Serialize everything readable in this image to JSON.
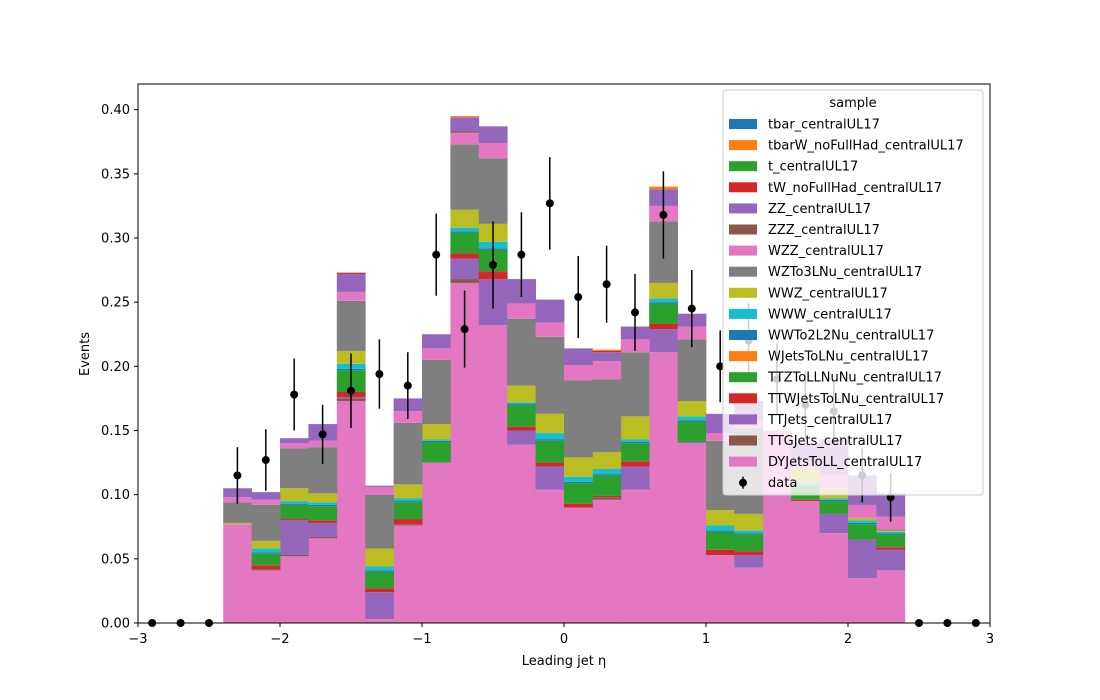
{
  "chart_data": {
    "type": "bar",
    "stacked": true,
    "xlabel": "Leading jet  η",
    "ylabel": "Events",
    "xlim": [
      -3,
      3
    ],
    "ylim": [
      0,
      0.42
    ],
    "xticks": [
      "−3",
      "−2",
      "−1",
      "0",
      "1",
      "2",
      "3"
    ],
    "xtick_values": [
      -3,
      -2,
      -1,
      0,
      1,
      2,
      3
    ],
    "yticks": [
      "0.00",
      "0.05",
      "0.10",
      "0.15",
      "0.20",
      "0.25",
      "0.30",
      "0.35",
      "0.40"
    ],
    "ytick_values": [
      0,
      0.05,
      0.1,
      0.15,
      0.2,
      0.25,
      0.3,
      0.35,
      0.4
    ],
    "legend": {
      "title": "sample",
      "position": "upper right"
    },
    "bin_edges": [
      -3.0,
      -2.8,
      -2.6,
      -2.4,
      -2.2,
      -2.0,
      -1.8,
      -1.6,
      -1.4,
      -1.2,
      -1.0,
      -0.8,
      -0.6,
      -0.4,
      -0.2,
      0.0,
      0.2,
      0.4,
      0.6,
      0.8,
      1.0,
      1.2,
      1.4,
      1.6,
      1.8,
      2.0,
      2.2,
      2.4,
      2.6,
      2.8,
      3.0
    ],
    "series": [
      {
        "name": "DYJetsToLL_centralUL17",
        "color": "#e377c2",
        "values": [
          0,
          0,
          0,
          0.077,
          0.041,
          0.052,
          0.066,
          0.173,
          0.003,
          0.076,
          0.125,
          0.265,
          0.232,
          0.139,
          0.104,
          0.09,
          0.096,
          0.104,
          0.211,
          0.14,
          0.053,
          0.043,
          0.15,
          0.095,
          0.07,
          0.035,
          0.041,
          0,
          0,
          0
        ]
      },
      {
        "name": "TTGJets_centralUL17",
        "color": "#8c564b",
        "values": [
          0,
          0,
          0,
          0,
          0.001,
          0.001,
          0.001,
          0.002,
          0,
          0.001,
          0,
          0.003,
          0,
          0,
          0,
          0,
          0.002,
          0,
          0,
          0,
          0,
          0,
          0,
          0,
          0,
          0,
          0,
          0,
          0,
          0
        ]
      },
      {
        "name": "TTJets_centralUL17",
        "color": "#9467bd",
        "values": [
          0,
          0,
          0,
          0,
          0,
          0.027,
          0.011,
          0.001,
          0.021,
          0,
          0,
          0.016,
          0.036,
          0.011,
          0.018,
          0,
          0,
          0.018,
          0.018,
          0.001,
          0,
          0.01,
          0,
          0,
          0.015,
          0.03,
          0.016,
          0,
          0,
          0
        ]
      },
      {
        "name": "TTWJetsToLNu_centralUL17",
        "color": "#d62728",
        "values": [
          0,
          0,
          0,
          0,
          0.003,
          0.001,
          0.002,
          0.004,
          0.003,
          0.004,
          0,
          0.004,
          0.006,
          0.003,
          0.003,
          0.003,
          0.001,
          0.004,
          0.004,
          0,
          0.004,
          0.003,
          0,
          0.001,
          0,
          0,
          0.002,
          0,
          0,
          0
        ]
      },
      {
        "name": "TTZToLLNuNu_centralUL17",
        "color": "#2ca02c",
        "values": [
          0,
          0,
          0,
          0,
          0.009,
          0.011,
          0.011,
          0.017,
          0.013,
          0.013,
          0.016,
          0.016,
          0.017,
          0.017,
          0.017,
          0.016,
          0.016,
          0.014,
          0.016,
          0.016,
          0.014,
          0.013,
          0,
          0.01,
          0.01,
          0.012,
          0.01,
          0,
          0,
          0
        ]
      },
      {
        "name": "WJetsToLNu_centralUL17",
        "color": "#ff7f0e",
        "values": [
          0,
          0,
          0,
          0,
          0,
          0,
          0,
          0,
          0,
          0,
          0,
          0,
          0,
          0,
          0,
          0,
          0,
          0,
          0,
          0,
          0,
          0,
          0,
          0,
          0,
          0,
          0,
          0,
          0,
          0
        ]
      },
      {
        "name": "WWTo2L2Nu_centralUL17",
        "color": "#1f77b4",
        "values": [
          0,
          0,
          0,
          0,
          0.001,
          0.001,
          0.001,
          0.001,
          0.001,
          0.001,
          0.001,
          0.001,
          0.001,
          0.001,
          0.001,
          0.001,
          0.001,
          0.001,
          0.001,
          0.001,
          0.001,
          0.001,
          0,
          0.001,
          0.001,
          0.001,
          0.001,
          0,
          0,
          0
        ]
      },
      {
        "name": "WWW_centralUL17",
        "color": "#17becf",
        "values": [
          0,
          0,
          0,
          0,
          0.003,
          0.002,
          0.002,
          0.004,
          0.003,
          0.002,
          0.001,
          0.003,
          0.005,
          0.001,
          0.005,
          0.004,
          0.004,
          0.002,
          0.003,
          0.003,
          0.004,
          0.002,
          0,
          0.002,
          0.001,
          0.002,
          0.001,
          0,
          0,
          0
        ]
      },
      {
        "name": "WWZ_centralUL17",
        "color": "#bcbd22",
        "values": [
          0,
          0,
          0,
          0.001,
          0.006,
          0.01,
          0.007,
          0.01,
          0.014,
          0.011,
          0.012,
          0.014,
          0.014,
          0.013,
          0.015,
          0.015,
          0.013,
          0.018,
          0.012,
          0.012,
          0.012,
          0.013,
          0,
          0.011,
          0.008,
          0.002,
          0.001,
          0,
          0,
          0
        ]
      },
      {
        "name": "WZTo3LNu_centralUL17",
        "color": "#7f7f7f",
        "values": [
          0,
          0,
          0,
          0.016,
          0.028,
          0.031,
          0.036,
          0.039,
          0.042,
          0.048,
          0.05,
          0.051,
          0.051,
          0.052,
          0.06,
          0.06,
          0.057,
          0.05,
          0.048,
          0.048,
          0.054,
          0.067,
          0,
          0,
          0,
          0,
          0.001,
          0,
          0,
          0
        ]
      },
      {
        "name": "WZZ_centralUL17",
        "color": "#e377c2",
        "values": [
          0,
          0,
          0,
          0.004,
          0.004,
          0.004,
          0.005,
          0.007,
          0.006,
          0.009,
          0.009,
          0.009,
          0.012,
          0.012,
          0.011,
          0.012,
          0.014,
          0.01,
          0.012,
          0.01,
          0.006,
          0.006,
          0,
          0.005,
          0.01,
          0.01,
          0.01,
          0,
          0,
          0
        ]
      },
      {
        "name": "ZZZ_centralUL17",
        "color": "#8c564b",
        "values": [
          0,
          0,
          0,
          0,
          0,
          0,
          0,
          0,
          0,
          0,
          0,
          0.001,
          0,
          0,
          0,
          0,
          0,
          0,
          0,
          0,
          0,
          0,
          0,
          0,
          0,
          0,
          0,
          0,
          0,
          0
        ]
      },
      {
        "name": "ZZ_centralUL17",
        "color": "#9467bd",
        "values": [
          0,
          0,
          0,
          0.007,
          0.006,
          0.004,
          0.013,
          0.014,
          0.001,
          0.01,
          0.011,
          0.011,
          0.013,
          0.019,
          0.018,
          0.013,
          0.007,
          0.01,
          0.013,
          0.01,
          0.015,
          0.015,
          0,
          0.015,
          0.028,
          0.023,
          0.018,
          0,
          0,
          0
        ]
      },
      {
        "name": "tW_noFullHad_centralUL17",
        "color": "#d62728",
        "values": [
          0,
          0,
          0,
          0,
          0,
          0,
          0,
          0.001,
          0,
          0,
          0,
          0,
          0,
          0,
          0,
          0,
          0.001,
          0,
          0,
          0,
          0,
          0,
          0,
          0,
          0,
          0,
          0,
          0,
          0,
          0
        ]
      },
      {
        "name": "t_centralUL17",
        "color": "#2ca02c",
        "values": [
          0,
          0,
          0,
          0,
          0,
          0,
          0,
          0,
          0,
          0,
          0,
          0,
          0,
          0,
          0,
          0,
          0,
          0,
          0,
          0,
          0,
          0,
          0,
          0,
          0,
          0,
          0,
          0,
          0,
          0
        ]
      },
      {
        "name": "tbarW_noFullHad_centralUL17",
        "color": "#ff7f0e",
        "values": [
          0,
          0,
          0,
          0,
          0,
          0,
          0,
          0,
          0,
          0,
          0,
          0.001,
          0,
          0,
          0,
          0,
          0.001,
          0,
          0.002,
          0,
          0,
          0,
          0,
          0,
          0,
          0,
          0,
          0,
          0,
          0
        ]
      },
      {
        "name": "tbar_centralUL17",
        "color": "#1f77b4",
        "values": [
          0,
          0,
          0,
          0,
          0,
          0,
          0,
          0,
          0,
          0,
          0,
          0,
          0,
          0,
          0,
          0,
          0,
          0,
          0,
          0,
          0,
          0,
          0,
          0,
          0,
          0,
          0,
          0,
          0,
          0
        ]
      }
    ],
    "data": {
      "name": "data",
      "color": "#000000",
      "x": [
        -2.9,
        -2.7,
        -2.5,
        -2.3,
        -2.1,
        -1.9,
        -1.7,
        -1.5,
        -1.3,
        -1.1,
        -0.9,
        -0.7,
        -0.5,
        -0.3,
        -0.1,
        0.1,
        0.3,
        0.5,
        0.7,
        0.9,
        1.1,
        1.3,
        1.5,
        1.7,
        1.9,
        2.1,
        2.3,
        2.5,
        2.7,
        2.9
      ],
      "y": [
        0,
        0,
        0,
        0.115,
        0.127,
        0.178,
        0.147,
        0.181,
        0.194,
        0.185,
        0.287,
        0.229,
        0.279,
        0.287,
        0.327,
        0.254,
        0.264,
        0.242,
        0.318,
        0.245,
        0.2,
        0.22,
        0.19,
        0.17,
        0.165,
        0.115,
        0.098,
        0,
        0,
        0
      ],
      "yerr": [
        0,
        0,
        0,
        0.022,
        0.024,
        0.028,
        0.023,
        0.029,
        0.027,
        0.026,
        0.032,
        0.03,
        0.034,
        0.033,
        0.036,
        0.032,
        0.03,
        0.03,
        0.034,
        0.03,
        0.028,
        0.029,
        0.028,
        0.026,
        0.025,
        0.021,
        0.019,
        0,
        0,
        0
      ]
    }
  }
}
